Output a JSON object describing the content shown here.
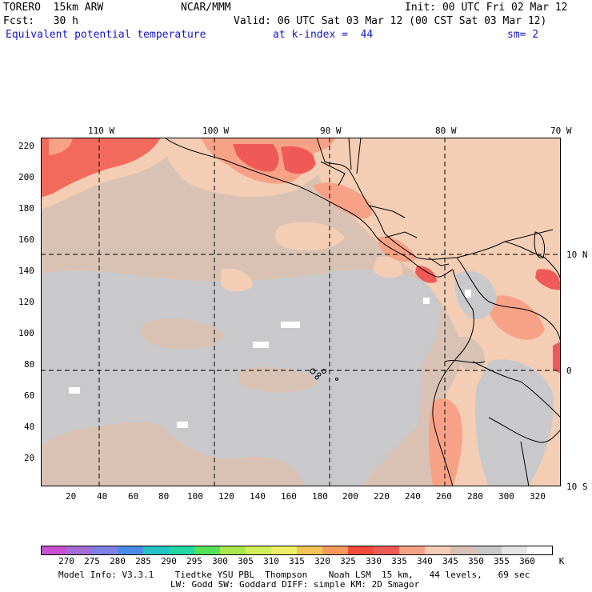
{
  "header": {
    "model": "TORERO  15km ARW",
    "center": "NCAR/MMM",
    "init": "Init: 00 UTC Fri 02 Mar 12",
    "fcst": "Fcst:   30 h",
    "valid": "Valid: 06 UTC Sat 03 Mar 12 (00 CST Sat 03 Mar 12)",
    "field": "Equivalent potential temperature",
    "level": "at k-index =  44",
    "smooth": "sm= 2"
  },
  "map": {
    "top_lon_labels": [
      "110 W",
      "100 W",
      "90 W",
      "80 W",
      "70 W"
    ],
    "right_lat_labels": [
      "10 N",
      "0",
      "10 S"
    ],
    "y_ticks": [
      20,
      40,
      60,
      80,
      100,
      120,
      140,
      160,
      180,
      200,
      220
    ],
    "x_ticks": [
      20,
      40,
      60,
      80,
      100,
      120,
      140,
      160,
      180,
      200,
      220,
      240,
      260,
      280,
      300,
      320
    ],
    "grid_range": {
      "x": [
        0,
        333
      ],
      "y": [
        0,
        225
      ]
    }
  },
  "colorbar": {
    "unit": "K",
    "levels": [
      "270",
      "275",
      "280",
      "285",
      "290",
      "295",
      "300",
      "305",
      "310",
      "315",
      "320",
      "325",
      "330",
      "335",
      "340",
      "345",
      "350",
      "355",
      "360"
    ],
    "colors": [
      "#c84fd0",
      "#a36cd6",
      "#7f7fe6",
      "#4a8ce8",
      "#24c2c2",
      "#22d8a4",
      "#56e05a",
      "#a6e84e",
      "#d2ee5a",
      "#eef066",
      "#f4c45a",
      "#f59a5a",
      "#f24a3c",
      "#f05a56",
      "#f7a287",
      "#f3cdb4",
      "#d8c1b3",
      "#c8c8cb",
      "#e4e4e6",
      "#ffffff"
    ]
  },
  "footer": {
    "line1": "Model Info: V3.3.1    Tiedtke YSU PBL  Thompson    Noah LSM  15 km,   44 levels,   69 sec",
    "line2": "LW: Godd SW: Goddard DIFF: simple KM: 2D Smagor"
  }
}
